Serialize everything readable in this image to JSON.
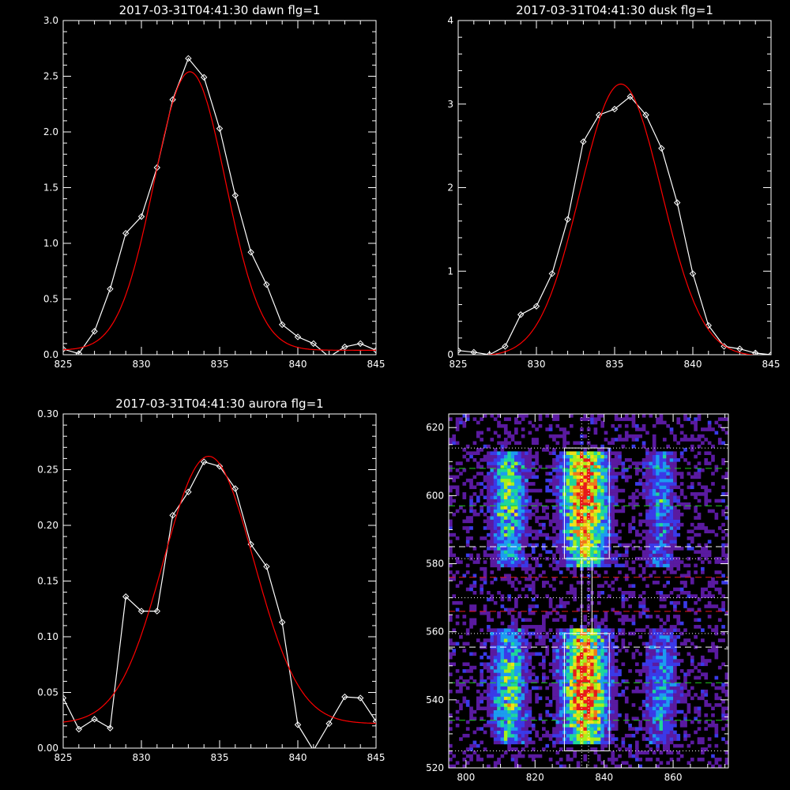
{
  "chart_data": [
    {
      "type": "line",
      "title": "2017-03-31T04:41:30 dawn flg=1",
      "xlim": [
        825,
        845
      ],
      "ylim": [
        0,
        3.0
      ],
      "xticks": [
        "825",
        "830",
        "835",
        "840",
        "845"
      ],
      "yticks": [
        "0.0",
        "0.5",
        "1.0",
        "1.5",
        "2.0",
        "2.5",
        "3.0"
      ],
      "ytick_values": [
        0,
        0.5,
        1.0,
        1.5,
        2.0,
        2.5,
        3.0
      ],
      "series": [
        {
          "kind": "data",
          "color": "#ffffff",
          "marker": "diamond",
          "x": [
            825,
            826,
            827,
            828,
            829,
            830,
            831,
            832,
            833,
            834,
            835,
            836,
            837,
            838,
            839,
            840,
            841,
            842,
            843,
            844,
            845
          ],
          "y": [
            0.05,
            0.01,
            0.21,
            0.59,
            1.09,
            1.24,
            1.68,
            2.29,
            2.66,
            2.49,
            2.03,
            1.43,
            0.92,
            0.63,
            0.27,
            0.16,
            0.1,
            -0.02,
            0.07,
            0.1,
            0.04
          ]
        },
        {
          "kind": "fit",
          "color": "#ff0000",
          "center": 833.1,
          "sigma": 2.28,
          "amplitude": 2.5,
          "offset": 0.04
        }
      ]
    },
    {
      "type": "line",
      "title": "2017-03-31T04:41:30 dusk flg=1",
      "xlim": [
        825,
        845
      ],
      "ylim": [
        0,
        4
      ],
      "xticks": [
        "825",
        "830",
        "835",
        "840",
        "845"
      ],
      "yticks": [
        "0",
        "1",
        "2",
        "3",
        "4"
      ],
      "ytick_values": [
        0,
        1,
        2,
        3,
        4
      ],
      "series": [
        {
          "kind": "data",
          "color": "#ffffff",
          "marker": "diamond",
          "x": [
            825,
            826,
            827,
            828,
            829,
            830,
            831,
            832,
            833,
            834,
            835,
            836,
            837,
            838,
            839,
            840,
            841,
            842,
            843,
            844,
            845
          ],
          "y": [
            0.05,
            0.03,
            0.0,
            0.1,
            0.48,
            0.58,
            0.97,
            1.62,
            2.55,
            2.87,
            2.94,
            3.09,
            2.87,
            2.47,
            1.82,
            0.97,
            0.35,
            0.1,
            0.07,
            0.02,
            0.0
          ]
        },
        {
          "kind": "fit",
          "color": "#ff0000",
          "center": 835.4,
          "sigma": 2.6,
          "amplitude": 3.26,
          "offset": -0.02
        }
      ]
    },
    {
      "type": "line",
      "title": "2017-03-31T04:41:30 aurora flg=1",
      "xlim": [
        825,
        845
      ],
      "ylim": [
        0,
        0.3
      ],
      "xticks": [
        "825",
        "830",
        "835",
        "840",
        "845"
      ],
      "yticks": [
        "0.00",
        "0.05",
        "0.10",
        "0.15",
        "0.20",
        "0.25",
        "0.30"
      ],
      "ytick_values": [
        0,
        0.05,
        0.1,
        0.15,
        0.2,
        0.25,
        0.3
      ],
      "series": [
        {
          "kind": "data",
          "color": "#ffffff",
          "marker": "diamond",
          "x": [
            825,
            826,
            827,
            828,
            829,
            830,
            831,
            832,
            833,
            834,
            835,
            836,
            837,
            838,
            839,
            840,
            841,
            842,
            843,
            844,
            845
          ],
          "y": [
            0.045,
            0.017,
            0.026,
            0.018,
            0.136,
            0.123,
            0.123,
            0.209,
            0.23,
            0.257,
            0.253,
            0.233,
            0.183,
            0.163,
            0.113,
            0.021,
            -0.002,
            0.022,
            0.046,
            0.045,
            0.024
          ]
        },
        {
          "kind": "fit",
          "color": "#ff0000",
          "center": 834.3,
          "sigma": 2.9,
          "amplitude": 0.24,
          "offset": 0.022
        }
      ]
    },
    {
      "type": "heatmap",
      "title": "",
      "xlim": [
        795,
        876
      ],
      "ylim": [
        520,
        624
      ],
      "xticks": [
        "800",
        "820",
        "840",
        "860"
      ],
      "xtick_values": [
        800,
        820,
        840,
        860
      ],
      "yticks": [
        "520",
        "540",
        "560",
        "580",
        "600",
        "620"
      ],
      "ytick_values": [
        520,
        540,
        560,
        580,
        600,
        620
      ],
      "colormap": [
        "#000000",
        "#5a1aa0",
        "#3a3ae8",
        "#1c9cf0",
        "#1ed79a",
        "#a6f01c",
        "#f0e01a",
        "#f0781a",
        "#e81a1a"
      ],
      "emission_columns": [
        {
          "x_center": 812,
          "width": 7,
          "strength": 0.55
        },
        {
          "x_center": 834,
          "width": 9,
          "strength": 1.0
        },
        {
          "x_center": 856,
          "width": 6,
          "strength": 0.35
        }
      ],
      "emission_rows": [
        {
          "y_min": 527,
          "y_max": 560,
          "peak": 543
        },
        {
          "y_min": 579,
          "y_max": 612,
          "peak": 600
        }
      ],
      "boxes": [
        {
          "x0": 828.5,
          "x1": 841.5,
          "y0": 525,
          "y1": 559.5,
          "color": "#ffffff"
        },
        {
          "x0": 828.5,
          "x1": 841.5,
          "y0": 581.5,
          "y1": 614,
          "color": "#ffffff"
        },
        {
          "x0": 833.5,
          "x1": 836.5,
          "y0": 559.5,
          "y1": 581.5,
          "color": "#ffffff"
        }
      ],
      "hlines": [
        {
          "y": 614,
          "color": "#ffffff",
          "style": "dotted"
        },
        {
          "y": 608,
          "color": "#22cc22",
          "style": "dashed"
        },
        {
          "y": 597,
          "color": "#22cc22",
          "style": "dashed"
        },
        {
          "y": 585,
          "color": "#ffffff",
          "style": "dashed"
        },
        {
          "y": 581.5,
          "color": "#ffffff",
          "style": "dotted"
        },
        {
          "y": 576,
          "color": "#e81a1a",
          "style": "dashed"
        },
        {
          "y": 570,
          "color": "#ffffff",
          "style": "dotted"
        },
        {
          "y": 566,
          "color": "#e81a1a",
          "style": "dashed"
        },
        {
          "y": 559.5,
          "color": "#ffffff",
          "style": "dotted"
        },
        {
          "y": 555.5,
          "color": "#ffffff",
          "style": "dashed"
        },
        {
          "y": 545,
          "color": "#22cc22",
          "style": "dashed"
        },
        {
          "y": 534,
          "color": "#22cc22",
          "style": "dashed"
        },
        {
          "y": 525,
          "color": "#ffffff",
          "style": "dotted"
        }
      ],
      "vlines": [
        {
          "x": 833.5,
          "color": "#ffffff",
          "style": "dotted"
        },
        {
          "x": 835.5,
          "color": "#ffffff",
          "style": "dotted"
        }
      ]
    }
  ]
}
